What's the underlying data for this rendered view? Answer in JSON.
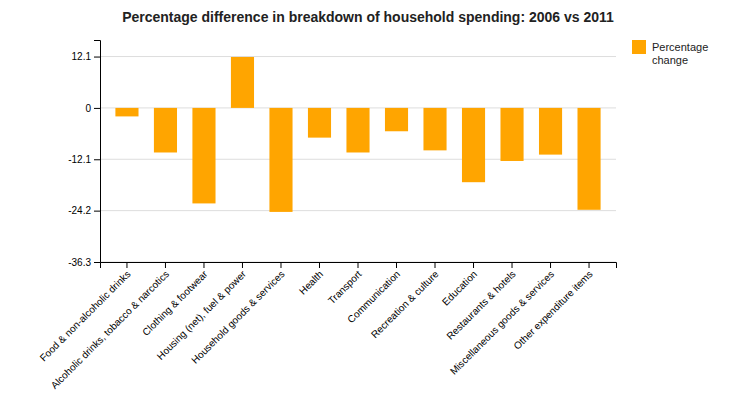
{
  "chart_data": {
    "type": "bar",
    "title": "Percentage difference in breakdown of household spending: 2006 vs 2011",
    "categories": [
      "Food & non-alcoholic drinks",
      "Alcoholic drinks, tobacco & narcotics",
      "Clothing & footwear",
      "Housing (net), fuel & power",
      "Household goods & services",
      "Health",
      "Transport",
      "Communication",
      "Recreation & culture",
      "Education",
      "Restaurants & hotels",
      "Miscellaneous goods & services",
      "Other expenditure items"
    ],
    "series": [
      {
        "name": "Percentage\nchange",
        "color": "#FFA500",
        "values": [
          -2.0,
          -10.5,
          -22.5,
          12.0,
          -24.5,
          -7.0,
          -10.5,
          -5.5,
          -10.0,
          -17.5,
          -12.5,
          -11.0,
          -24.0
        ]
      }
    ],
    "ylim": [
      -36.3,
      16.0
    ],
    "yticks": [
      12.1,
      0,
      -12.1,
      -24.2,
      -36.3
    ],
    "grid": true,
    "legend": "upper right"
  }
}
